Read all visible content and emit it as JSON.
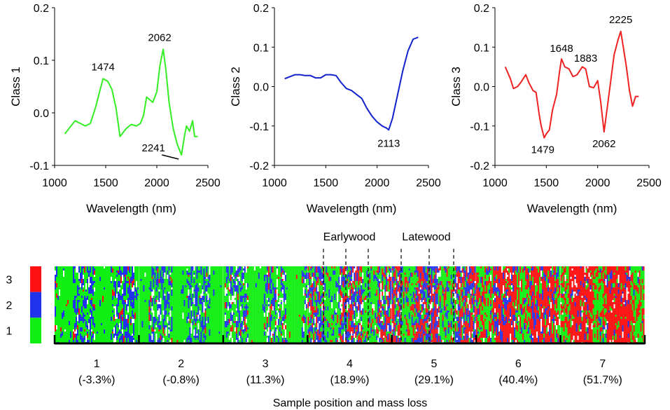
{
  "chart_data": [
    {
      "type": "line",
      "panel": "top-left",
      "xlabel": "Wavelength (nm)",
      "ylabel": "Class 1",
      "xlim": [
        1000,
        2500
      ],
      "ylim": [
        -0.1,
        0.2
      ],
      "xticks": [
        1000,
        1500,
        2000,
        2500
      ],
      "yticks": [
        -0.1,
        0.0,
        0.1,
        0.2
      ],
      "ytick_labels": [
        "-0.1",
        "0.0",
        "0.1",
        "0.2"
      ],
      "color": "#33ee22",
      "series": [
        {
          "name": "Class 1",
          "x": [
            1100,
            1160,
            1200,
            1250,
            1300,
            1350,
            1400,
            1440,
            1474,
            1520,
            1560,
            1600,
            1640,
            1700,
            1750,
            1800,
            1840,
            1870,
            1900,
            1930,
            1960,
            2000,
            2030,
            2062,
            2090,
            2120,
            2160,
            2200,
            2241,
            2270,
            2290,
            2320,
            2350,
            2370,
            2400
          ],
          "y": [
            -0.04,
            -0.025,
            -0.015,
            -0.02,
            -0.025,
            -0.02,
            0.01,
            0.04,
            0.065,
            0.06,
            0.045,
            0.01,
            -0.045,
            -0.03,
            -0.022,
            -0.025,
            -0.02,
            -0.005,
            0.03,
            0.025,
            0.02,
            0.04,
            0.09,
            0.121,
            0.08,
            0.02,
            -0.03,
            -0.06,
            -0.08,
            -0.045,
            -0.025,
            -0.035,
            -0.015,
            -0.045,
            -0.045
          ]
        }
      ],
      "annotations": [
        {
          "label": "1474",
          "x": 1474,
          "y": 0.065
        },
        {
          "label": "2062",
          "x": 2062,
          "y": 0.121
        },
        {
          "label": "2241",
          "x": 2241,
          "y": -0.08
        }
      ]
    },
    {
      "type": "line",
      "panel": "top-middle",
      "xlabel": "Wavelength (nm)",
      "ylabel": "Class 2",
      "xlim": [
        1000,
        2500
      ],
      "ylim": [
        -0.2,
        0.2
      ],
      "xticks": [
        1000,
        1500,
        2000,
        2500
      ],
      "yticks": [
        -0.2,
        -0.1,
        0.0,
        0.1,
        0.2
      ],
      "ytick_labels": [
        "-0.2",
        "-0.1",
        "0.0",
        "0.1",
        "0.2"
      ],
      "color": "#1122cc",
      "series": [
        {
          "name": "Class 2",
          "x": [
            1100,
            1150,
            1200,
            1250,
            1300,
            1350,
            1400,
            1450,
            1500,
            1550,
            1600,
            1650,
            1700,
            1750,
            1800,
            1850,
            1900,
            1950,
            2000,
            2050,
            2090,
            2113,
            2150,
            2200,
            2250,
            2300,
            2350,
            2400
          ],
          "y": [
            0.02,
            0.025,
            0.03,
            0.03,
            0.028,
            0.028,
            0.022,
            0.022,
            0.03,
            0.03,
            0.028,
            0.01,
            -0.005,
            -0.01,
            -0.02,
            -0.03,
            -0.055,
            -0.075,
            -0.09,
            -0.1,
            -0.105,
            -0.11,
            -0.08,
            -0.02,
            0.04,
            0.09,
            0.12,
            0.125
          ]
        }
      ],
      "annotations": [
        {
          "label": "2113",
          "x": 2113,
          "y": -0.11
        }
      ]
    },
    {
      "type": "line",
      "panel": "top-right",
      "xlabel": "Wavelength (nm)",
      "ylabel": "Class 3",
      "xlim": [
        1000,
        2500
      ],
      "ylim": [
        -0.2,
        0.2
      ],
      "xticks": [
        1000,
        1500,
        2000,
        2500
      ],
      "yticks": [
        -0.2,
        -0.1,
        0.0,
        0.1,
        0.2
      ],
      "ytick_labels": [
        "-0.2",
        "-0.1",
        "0.0",
        "0.1",
        "0.2"
      ],
      "color": "#ee2222",
      "series": [
        {
          "name": "Class 3",
          "x": [
            1100,
            1150,
            1180,
            1220,
            1250,
            1300,
            1330,
            1370,
            1400,
            1430,
            1450,
            1479,
            1500,
            1530,
            1560,
            1600,
            1630,
            1648,
            1680,
            1720,
            1760,
            1800,
            1850,
            1883,
            1920,
            1960,
            2000,
            2030,
            2062,
            2090,
            2120,
            2160,
            2200,
            2225,
            2250,
            2280,
            2310,
            2340,
            2370,
            2400
          ],
          "y": [
            0.05,
            0.02,
            -0.005,
            0.0,
            0.01,
            0.03,
            0.01,
            -0.01,
            -0.015,
            -0.07,
            -0.1,
            -0.13,
            -0.12,
            -0.11,
            -0.06,
            -0.02,
            0.04,
            0.07,
            0.05,
            0.045,
            0.025,
            0.03,
            0.05,
            0.045,
            0.0,
            -0.003,
            0.015,
            -0.04,
            -0.115,
            -0.06,
            0.0,
            0.08,
            0.12,
            0.14,
            0.1,
            0.05,
            -0.01,
            -0.05,
            -0.025,
            -0.025
          ]
        }
      ],
      "annotations": [
        {
          "label": "1479",
          "x": 1479,
          "y": -0.13
        },
        {
          "label": "1648",
          "x": 1648,
          "y": 0.07
        },
        {
          "label": "1883",
          "x": 1883,
          "y": 0.045
        },
        {
          "label": "2062",
          "x": 2062,
          "y": -0.115
        },
        {
          "label": "2225",
          "x": 2225,
          "y": 0.14
        }
      ]
    },
    {
      "type": "heatmap",
      "panel": "bottom",
      "title": "",
      "xlabel": "Sample position and mass loss",
      "legend": {
        "position": "left",
        "entries": [
          {
            "label": "3",
            "class": 3,
            "color": "#ff1111"
          },
          {
            "label": "2",
            "class": 2,
            "color": "#2233ee"
          },
          {
            "label": "1",
            "class": 1,
            "color": "#11ee11"
          }
        ]
      },
      "samples": [
        {
          "label": "1",
          "mass_loss": "(-3.3%)",
          "composition": {
            "green": 0.58,
            "blue": 0.3,
            "red": 0.04,
            "white": 0.08
          }
        },
        {
          "label": "2",
          "mass_loss": "(-0.8%)",
          "composition": {
            "green": 0.62,
            "blue": 0.28,
            "red": 0.03,
            "white": 0.07
          }
        },
        {
          "label": "3",
          "mass_loss": "(11.3%)",
          "composition": {
            "green": 0.62,
            "blue": 0.22,
            "red": 0.08,
            "white": 0.08
          }
        },
        {
          "label": "4",
          "mass_loss": "(18.9%)",
          "composition": {
            "green": 0.4,
            "blue": 0.28,
            "red": 0.24,
            "white": 0.08
          }
        },
        {
          "label": "5",
          "mass_loss": "(29.1%)",
          "composition": {
            "green": 0.3,
            "blue": 0.3,
            "red": 0.34,
            "white": 0.06
          }
        },
        {
          "label": "6",
          "mass_loss": "(40.4%)",
          "composition": {
            "green": 0.2,
            "blue": 0.18,
            "red": 0.57,
            "white": 0.05
          }
        },
        {
          "label": "7",
          "mass_loss": "(51.7%)",
          "composition": {
            "green": 0.22,
            "blue": 0.07,
            "red": 0.66,
            "white": 0.05
          }
        }
      ],
      "annotations": [
        {
          "label": "Earlywood",
          "sample": "4"
        },
        {
          "label": "Latewood",
          "sample": "5"
        }
      ]
    }
  ]
}
